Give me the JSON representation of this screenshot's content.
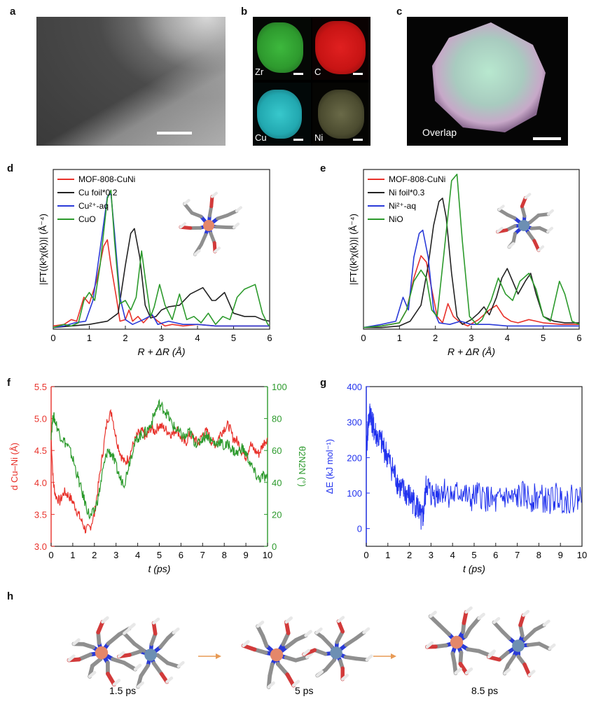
{
  "panel_labels": {
    "a": "a",
    "b": "b",
    "c": "c",
    "d": "d",
    "e": "e",
    "f": "f",
    "g": "g",
    "h": "h"
  },
  "panel_b": {
    "zr": "Zr",
    "c": "C",
    "cu": "Cu",
    "ni": "Ni"
  },
  "panel_c": {
    "overlap": "Overlap"
  },
  "panel_h": {
    "t1": "1.5 ps",
    "t2": "5 ps",
    "t3": "8.5 ps"
  },
  "colors": {
    "red": "#e8312a",
    "black": "#222222",
    "blue": "#2a3ad8",
    "green": "#2c9a2c",
    "blue_plot": "#2233ee",
    "arrow": "#e89a55"
  },
  "chart_data": [
    {
      "id": "d",
      "type": "line",
      "xlabel": "R + ΔR (Å)",
      "ylabel": "|FT((k³χ(k))| (Å⁻⁴)",
      "xlim": [
        0,
        6
      ],
      "xticks": [
        0,
        1,
        2,
        3,
        4,
        5,
        6
      ],
      "ylim": [
        0,
        1
      ],
      "series": [
        {
          "name": "MOF-808-CuNi",
          "color": "#e8312a",
          "x": [
            0,
            0.3,
            0.5,
            0.65,
            0.85,
            1.0,
            1.2,
            1.4,
            1.5,
            1.6,
            1.75,
            1.85,
            2.0,
            2.1,
            2.2,
            2.35,
            2.5,
            2.7,
            2.9,
            3.1,
            3.3,
            3.6,
            4.0,
            4.5,
            5.0,
            5.5,
            6.0
          ],
          "y": [
            0.02,
            0.03,
            0.06,
            0.05,
            0.2,
            0.16,
            0.3,
            0.52,
            0.56,
            0.4,
            0.2,
            0.05,
            0.06,
            0.12,
            0.05,
            0.08,
            0.04,
            0.09,
            0.05,
            0.02,
            0.03,
            0.02,
            0.03,
            0.02,
            0.02,
            0.02,
            0.02
          ]
        },
        {
          "name": "Cu foil*0.2",
          "color": "#222222",
          "x": [
            0,
            0.5,
            1.0,
            1.5,
            1.8,
            2.0,
            2.15,
            2.25,
            2.4,
            2.55,
            2.7,
            2.85,
            3.0,
            3.2,
            3.5,
            3.8,
            4.15,
            4.4,
            4.5,
            4.75,
            5.0,
            5.3,
            5.6,
            5.8,
            6.0
          ],
          "y": [
            0.01,
            0.02,
            0.03,
            0.05,
            0.1,
            0.4,
            0.6,
            0.63,
            0.45,
            0.15,
            0.07,
            0.08,
            0.12,
            0.14,
            0.15,
            0.22,
            0.26,
            0.18,
            0.18,
            0.23,
            0.1,
            0.08,
            0.08,
            0.06,
            0.05
          ]
        },
        {
          "name": "Cu²⁺-aq",
          "color": "#2a3ad8",
          "x": [
            0,
            0.3,
            0.6,
            0.9,
            1.1,
            1.3,
            1.5,
            1.6,
            1.7,
            1.85,
            2.0,
            2.2,
            2.5,
            2.75,
            2.9,
            3.2,
            3.6,
            4.0,
            4.5,
            5.0,
            5.5,
            6.0
          ],
          "y": [
            0.01,
            0.02,
            0.04,
            0.05,
            0.18,
            0.5,
            0.83,
            0.85,
            0.6,
            0.2,
            0.06,
            0.03,
            0.06,
            0.09,
            0.03,
            0.05,
            0.03,
            0.03,
            0.02,
            0.02,
            0.02,
            0.02
          ]
        },
        {
          "name": "CuO",
          "color": "#2c9a2c",
          "x": [
            0,
            0.3,
            0.5,
            0.7,
            0.85,
            1.0,
            1.15,
            1.3,
            1.5,
            1.6,
            1.7,
            1.85,
            2.0,
            2.15,
            2.3,
            2.45,
            2.55,
            2.7,
            2.8,
            2.95,
            3.1,
            3.3,
            3.5,
            3.7,
            3.9,
            4.1,
            4.3,
            4.5,
            4.7,
            4.9,
            5.1,
            5.3,
            5.6,
            5.8,
            5.95,
            6.0
          ],
          "y": [
            0.01,
            0.03,
            0.02,
            0.04,
            0.18,
            0.23,
            0.18,
            0.4,
            0.82,
            0.87,
            0.55,
            0.16,
            0.18,
            0.12,
            0.2,
            0.49,
            0.32,
            0.08,
            0.14,
            0.28,
            0.15,
            0.06,
            0.22,
            0.06,
            0.08,
            0.04,
            0.1,
            0.03,
            0.08,
            0.06,
            0.2,
            0.25,
            0.28,
            0.1,
            0.03,
            0.02
          ]
        }
      ]
    },
    {
      "id": "e",
      "type": "line",
      "xlabel": "R + ΔR (Å)",
      "ylabel": "|FT((k³χ(k))| (Å⁻⁴)",
      "xlim": [
        0,
        6
      ],
      "xticks": [
        0,
        1,
        2,
        3,
        4,
        5,
        6
      ],
      "ylim": [
        0,
        1
      ],
      "series": [
        {
          "name": "MOF-808-CuNi",
          "color": "#e8312a",
          "x": [
            0,
            0.5,
            1.0,
            1.2,
            1.4,
            1.6,
            1.75,
            1.9,
            2.05,
            2.2,
            2.35,
            2.5,
            2.7,
            2.9,
            3.2,
            3.5,
            3.7,
            3.9,
            4.1,
            4.3,
            4.6,
            5.0,
            5.5,
            6.0
          ],
          "y": [
            0.01,
            0.02,
            0.04,
            0.12,
            0.32,
            0.46,
            0.42,
            0.25,
            0.08,
            0.04,
            0.16,
            0.08,
            0.04,
            0.02,
            0.06,
            0.12,
            0.15,
            0.08,
            0.05,
            0.04,
            0.06,
            0.04,
            0.03,
            0.03
          ]
        },
        {
          "name": "Ni foil*0.3",
          "color": "#222222",
          "x": [
            0,
            0.5,
            1.0,
            1.3,
            1.6,
            1.8,
            1.95,
            2.1,
            2.2,
            2.3,
            2.45,
            2.6,
            2.75,
            3.0,
            3.2,
            3.35,
            3.5,
            3.7,
            3.85,
            4.0,
            4.15,
            4.3,
            4.5,
            4.65,
            4.8,
            5.0,
            5.3,
            5.6,
            6.0
          ],
          "y": [
            0.01,
            0.01,
            0.02,
            0.05,
            0.15,
            0.4,
            0.65,
            0.8,
            0.82,
            0.7,
            0.35,
            0.08,
            0.03,
            0.06,
            0.1,
            0.14,
            0.09,
            0.2,
            0.32,
            0.38,
            0.3,
            0.22,
            0.3,
            0.35,
            0.22,
            0.08,
            0.05,
            0.04,
            0.04
          ]
        },
        {
          "name": "Ni²⁺-aq",
          "color": "#2a3ad8",
          "x": [
            0,
            0.5,
            0.9,
            1.1,
            1.25,
            1.4,
            1.55,
            1.65,
            1.8,
            1.95,
            2.1,
            2.4,
            2.7,
            3.0,
            3.5,
            4.0,
            4.5,
            5.0,
            5.5,
            6.0
          ],
          "y": [
            0.01,
            0.03,
            0.05,
            0.2,
            0.12,
            0.45,
            0.6,
            0.62,
            0.45,
            0.12,
            0.04,
            0.03,
            0.05,
            0.03,
            0.03,
            0.02,
            0.02,
            0.02,
            0.02,
            0.02
          ]
        },
        {
          "name": "NiO",
          "color": "#2c9a2c",
          "x": [
            0,
            0.5,
            1.0,
            1.2,
            1.4,
            1.6,
            1.75,
            1.9,
            2.05,
            2.25,
            2.45,
            2.6,
            2.75,
            2.95,
            3.15,
            3.3,
            3.55,
            3.75,
            3.95,
            4.15,
            4.35,
            4.6,
            4.8,
            5.0,
            5.2,
            5.45,
            5.6,
            5.8,
            6.0
          ],
          "y": [
            0.01,
            0.02,
            0.04,
            0.12,
            0.3,
            0.37,
            0.32,
            0.12,
            0.08,
            0.5,
            0.93,
            0.97,
            0.55,
            0.08,
            0.03,
            0.06,
            0.18,
            0.32,
            0.22,
            0.18,
            0.3,
            0.35,
            0.25,
            0.08,
            0.05,
            0.3,
            0.22,
            0.05,
            0.03
          ]
        }
      ]
    },
    {
      "id": "f",
      "type": "line",
      "xlabel": "t (ps)",
      "ylabel_left": "d Cu–Ni (Å)",
      "ylabel_right": "θ2N2N (°)",
      "xlim": [
        0,
        10
      ],
      "xticks": [
        0,
        1,
        2,
        3,
        4,
        5,
        6,
        7,
        8,
        9,
        10
      ],
      "ylim_left": [
        3.0,
        5.5
      ],
      "yticks_left": [
        "3.0",
        "3.5",
        "4.0",
        "4.5",
        "5.0",
        "5.5"
      ],
      "ylim_right": [
        0,
        100
      ],
      "yticks_right": [
        "0",
        "20",
        "40",
        "60",
        "80",
        "100"
      ],
      "series": [
        {
          "name": "d Cu-Ni",
          "color": "#e8312a",
          "axis": "left",
          "x": [
            0,
            0.1,
            0.2,
            0.4,
            0.6,
            0.8,
            1.0,
            1.2,
            1.4,
            1.6,
            1.8,
            2.0,
            2.2,
            2.4,
            2.6,
            2.8,
            3.0,
            3.2,
            3.4,
            3.6,
            3.8,
            4.0,
            4.2,
            4.4,
            4.6,
            4.8,
            5.0,
            5.2,
            5.4,
            5.6,
            5.8,
            6.0,
            6.2,
            6.4,
            6.6,
            6.8,
            7.0,
            7.2,
            7.4,
            7.6,
            7.8,
            8.0,
            8.2,
            8.4,
            8.6,
            8.8,
            9.0,
            9.2,
            9.4,
            9.6,
            9.8,
            10.0
          ],
          "y": [
            4.7,
            4.0,
            3.8,
            3.7,
            3.85,
            3.8,
            3.7,
            3.55,
            3.4,
            3.25,
            3.3,
            3.5,
            4.0,
            4.5,
            5.0,
            5.1,
            4.7,
            4.45,
            4.3,
            4.4,
            4.6,
            4.75,
            4.8,
            4.7,
            4.85,
            4.8,
            4.9,
            4.85,
            4.8,
            4.75,
            4.85,
            4.7,
            4.6,
            4.75,
            4.7,
            4.6,
            4.75,
            4.8,
            4.65,
            4.6,
            4.75,
            4.85,
            4.9,
            4.7,
            4.65,
            4.5,
            4.4,
            4.6,
            4.5,
            4.45,
            4.6,
            4.7
          ]
        },
        {
          "name": "θ 2N2N",
          "color": "#2c9a2c",
          "axis": "right",
          "x": [
            0,
            0.1,
            0.2,
            0.4,
            0.6,
            0.8,
            1.0,
            1.2,
            1.4,
            1.6,
            1.8,
            2.0,
            2.2,
            2.4,
            2.6,
            2.8,
            3.0,
            3.2,
            3.4,
            3.6,
            3.8,
            4.0,
            4.2,
            4.4,
            4.6,
            4.8,
            5.0,
            5.2,
            5.4,
            5.6,
            5.8,
            6.0,
            6.2,
            6.4,
            6.6,
            6.8,
            7.0,
            7.2,
            7.4,
            7.6,
            7.8,
            8.0,
            8.2,
            8.4,
            8.6,
            8.8,
            9.0,
            9.2,
            9.4,
            9.6,
            9.8,
            10.0
          ],
          "y": [
            70,
            82,
            78,
            70,
            66,
            62,
            55,
            45,
            35,
            26,
            18,
            22,
            32,
            48,
            60,
            58,
            50,
            42,
            40,
            52,
            62,
            68,
            70,
            72,
            76,
            84,
            89,
            86,
            82,
            76,
            73,
            70,
            68,
            72,
            66,
            64,
            68,
            70,
            66,
            64,
            66,
            62,
            64,
            60,
            58,
            62,
            58,
            52,
            46,
            42,
            44,
            42
          ]
        }
      ]
    },
    {
      "id": "g",
      "type": "line",
      "xlabel": "t (ps)",
      "ylabel": "ΔE (kJ mol⁻¹)",
      "xlim": [
        0,
        10
      ],
      "xticks": [
        0,
        1,
        2,
        3,
        4,
        5,
        6,
        7,
        8,
        9,
        10
      ],
      "ylim": [
        -50,
        400
      ],
      "yticks": [
        0,
        100,
        200,
        300,
        400
      ],
      "series": [
        {
          "name": "ΔE",
          "color": "#2233ee",
          "x": [
            0,
            0.1,
            0.2,
            0.3,
            0.4,
            0.6,
            0.8,
            1.0,
            1.2,
            1.4,
            1.6,
            1.8,
            2.0,
            2.2,
            2.4,
            2.55,
            2.65,
            2.8,
            3.0,
            3.3,
            3.6,
            4.0,
            4.4,
            4.8,
            5.2,
            5.6,
            6.0,
            6.4,
            6.8,
            7.2,
            7.6,
            8.0,
            8.4,
            8.8,
            9.2,
            9.6,
            10.0
          ],
          "y": [
            220,
            300,
            330,
            290,
            270,
            250,
            230,
            200,
            170,
            140,
            110,
            100,
            90,
            75,
            60,
            20,
            40,
            130,
            95,
            100,
            110,
            90,
            105,
            80,
            95,
            85,
            70,
            90,
            80,
            95,
            85,
            90,
            75,
            90,
            80,
            85,
            90
          ]
        }
      ]
    }
  ]
}
